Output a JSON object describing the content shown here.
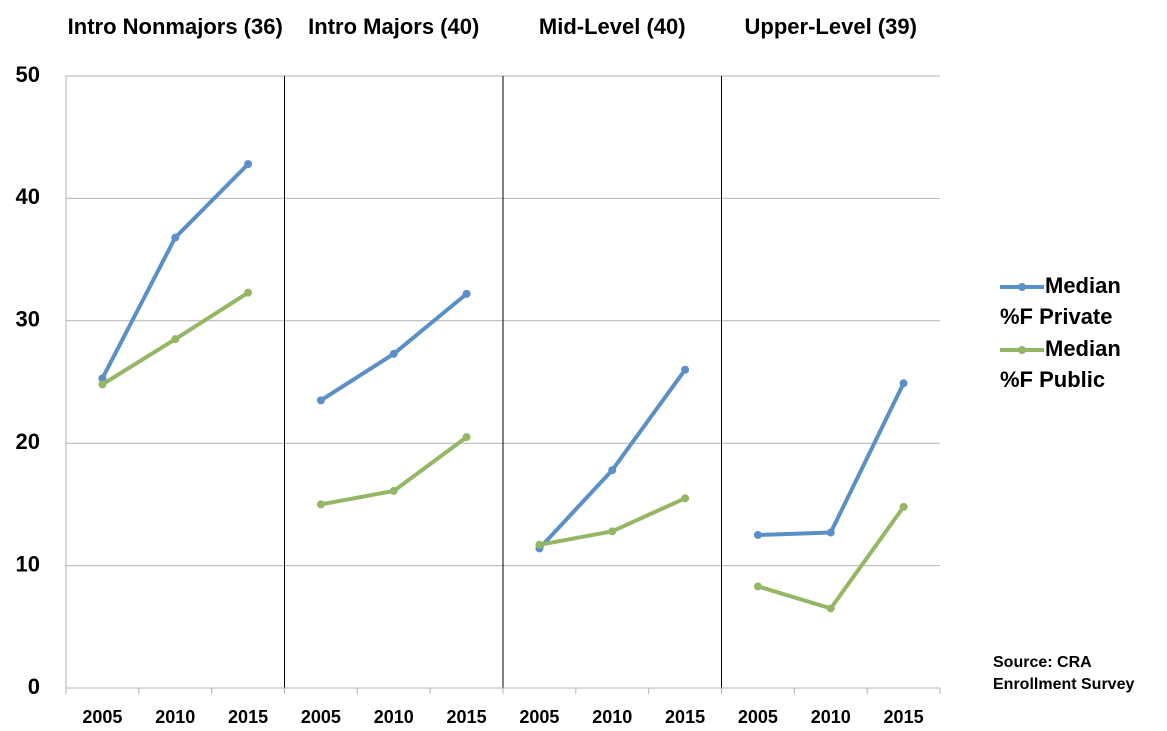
{
  "chart_data": {
    "type": "line",
    "groups": [
      {
        "title": "Intro Nonmajors (36)",
        "categories": [
          "2005",
          "2010",
          "2015"
        ]
      },
      {
        "title": "Intro Majors (40)",
        "categories": [
          "2005",
          "2010",
          "2015"
        ]
      },
      {
        "title": "Mid-Level (40)",
        "categories": [
          "2005",
          "2010",
          "2015"
        ]
      },
      {
        "title": "Upper-Level (39)",
        "categories": [
          "2005",
          "2010",
          "2015"
        ]
      }
    ],
    "series": [
      {
        "name": "Median %F Private",
        "color": "#5b8fc7",
        "values": [
          [
            25.3,
            36.8,
            42.8
          ],
          [
            23.5,
            27.3,
            32.2
          ],
          [
            11.4,
            17.8,
            26.0
          ],
          [
            12.5,
            12.7,
            24.9
          ]
        ]
      },
      {
        "name": "Median %F Public",
        "color": "#93b764",
        "values": [
          [
            24.8,
            28.5,
            32.3
          ],
          [
            15.0,
            16.1,
            20.5
          ],
          [
            11.7,
            12.8,
            15.5
          ],
          [
            8.3,
            6.5,
            14.8
          ]
        ]
      }
    ],
    "ylim": [
      0,
      50
    ],
    "yticks": [
      0,
      10,
      20,
      30,
      40,
      50
    ],
    "grid": true,
    "note": "Source: CRA Enrollment Survey"
  }
}
